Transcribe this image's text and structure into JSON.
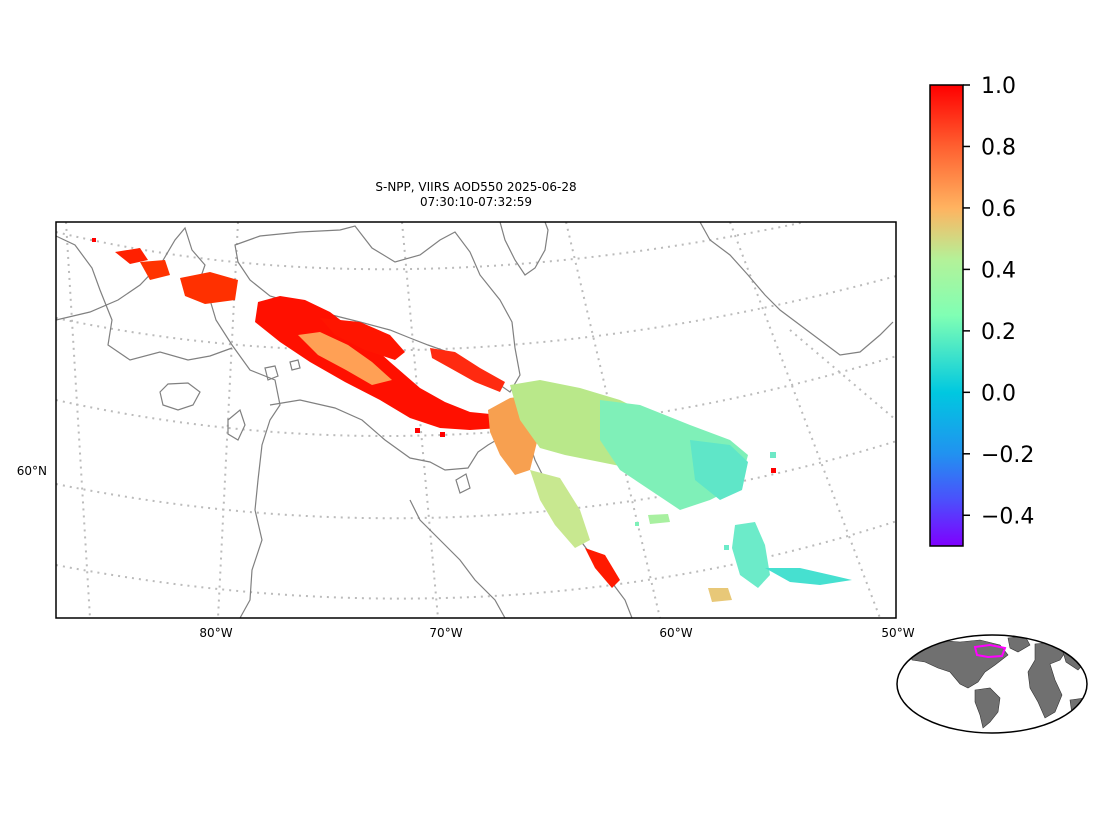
{
  "title": {
    "line1": "S-NPP, VIIRS AOD550 2025-06-28",
    "line2": "07:30:10-07:32:59"
  },
  "map": {
    "lon_labels": [
      "80°W",
      "70°W",
      "60°W",
      "50°W"
    ],
    "lat_labels": [
      "60°N"
    ],
    "coastline_color": "#808080",
    "graticule_color": "#bbbbbb"
  },
  "colorbar": {
    "colormap": "rainbow",
    "range": [
      -0.5,
      1.0
    ],
    "tick_labels": [
      "1.0",
      "0.8",
      "0.6",
      "0.4",
      "0.2",
      "0.0",
      "−0.2",
      "−0.4"
    ],
    "tick_values": [
      1.0,
      0.8,
      0.6,
      0.4,
      0.2,
      0.0,
      -0.2,
      -0.4
    ]
  },
  "inset": {
    "land_color": "#707070",
    "highlight_color": "#ff00ff"
  }
}
